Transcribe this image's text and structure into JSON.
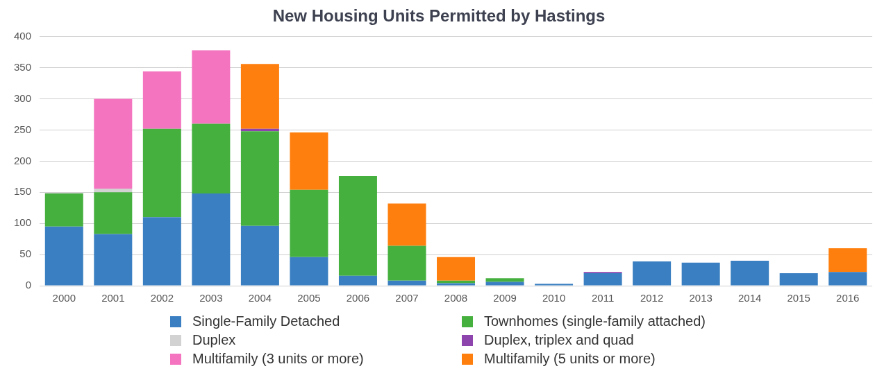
{
  "chart_data": {
    "type": "bar",
    "title": "New Housing Units Permitted by Hastings",
    "stacked": true,
    "grid": "y",
    "legend": "bottom",
    "categories": [
      "2000",
      "2001",
      "2002",
      "2003",
      "2004",
      "2005",
      "2006",
      "2007",
      "2008",
      "2009",
      "2010",
      "2011",
      "2012",
      "2013",
      "2014",
      "2015",
      "2016"
    ],
    "ylim": [
      0,
      400
    ],
    "yticks": [
      0,
      50,
      100,
      150,
      200,
      250,
      300,
      350,
      400
    ],
    "series": [
      {
        "name": "Single-Family Detached",
        "color": "#3a7fc1",
        "values": [
          95,
          83,
          110,
          148,
          96,
          46,
          16,
          8,
          4,
          6,
          3,
          20,
          39,
          37,
          40,
          20,
          22
        ]
      },
      {
        "name": "Townhomes (single-family attached)",
        "color": "#46b03f",
        "values": [
          53,
          67,
          142,
          112,
          152,
          108,
          160,
          56,
          4,
          6,
          null,
          null,
          null,
          null,
          null,
          null,
          null
        ]
      },
      {
        "name": "Duplex",
        "color": "#d2d2d2",
        "values": [
          2,
          6,
          null,
          null,
          null,
          null,
          null,
          null,
          null,
          null,
          null,
          null,
          null,
          null,
          null,
          null,
          null
        ]
      },
      {
        "name": "Duplex, triplex and quad",
        "color": "#8e44ad",
        "values": [
          null,
          null,
          null,
          null,
          4,
          null,
          null,
          null,
          null,
          null,
          null,
          2,
          null,
          null,
          null,
          null,
          null
        ]
      },
      {
        "name": "Multifamily (3 units or more)",
        "color": "#f474c0",
        "values": [
          null,
          144,
          92,
          118,
          null,
          null,
          null,
          null,
          null,
          null,
          null,
          null,
          null,
          null,
          null,
          null,
          null
        ]
      },
      {
        "name": "Multifamily (5 units or more)",
        "color": "#ff7f0e",
        "values": [
          null,
          null,
          null,
          null,
          104,
          92,
          null,
          68,
          38,
          null,
          null,
          null,
          null,
          null,
          null,
          null,
          38
        ]
      }
    ]
  }
}
